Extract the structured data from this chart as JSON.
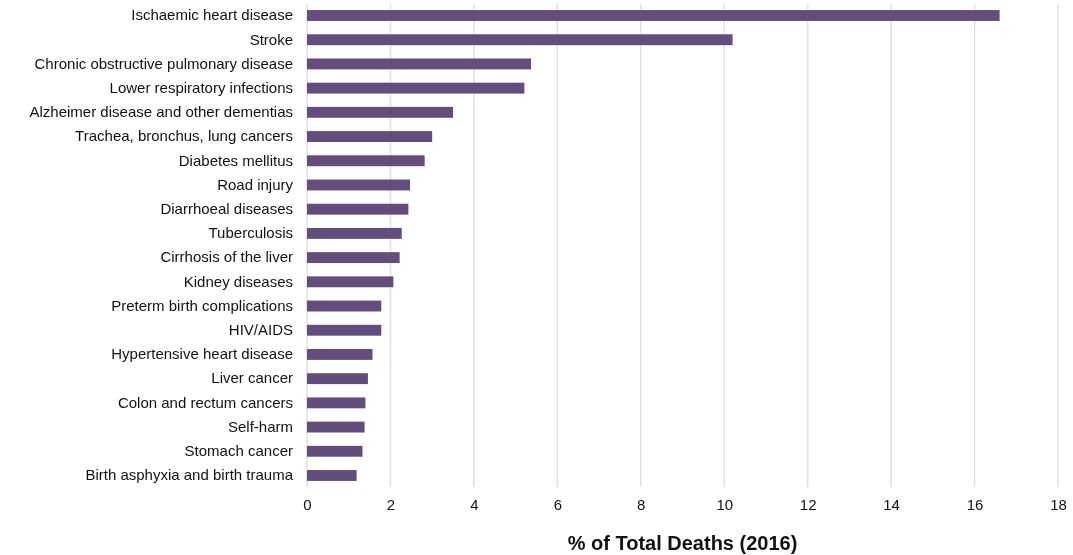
{
  "chart_data": {
    "type": "bar",
    "orientation": "horizontal",
    "xlabel": "% of Total Deaths (2016)",
    "categories": [
      "Ischaemic heart disease",
      "Stroke",
      "Chronic obstructive pulmonary disease",
      "Lower respiratory infections",
      "Alzheimer disease and other dementias",
      "Trachea, bronchus, lung cancers",
      "Diabetes mellitus",
      "Road injury",
      "Diarrhoeal diseases",
      "Tuberculosis",
      "Cirrhosis of the liver",
      "Kidney diseases",
      "Preterm birth complications",
      "HIV/AIDS",
      "Hypertensive heart disease",
      "Liver cancer",
      "Colon and rectum cancers",
      "Self-harm",
      "Stomach cancer",
      "Birth asphyxia and birth trauma"
    ],
    "values": [
      16.6,
      10.2,
      5.37,
      5.21,
      3.5,
      3.0,
      2.82,
      2.47,
      2.43,
      2.27,
      2.22,
      2.07,
      1.78,
      1.78,
      1.57,
      1.46,
      1.4,
      1.38,
      1.33,
      1.19
    ],
    "color": "#634d7d",
    "xlim": [
      0,
      18
    ],
    "xticks": [
      0,
      2,
      4,
      6,
      8,
      10,
      12,
      14,
      16,
      18
    ],
    "grid": "x"
  }
}
